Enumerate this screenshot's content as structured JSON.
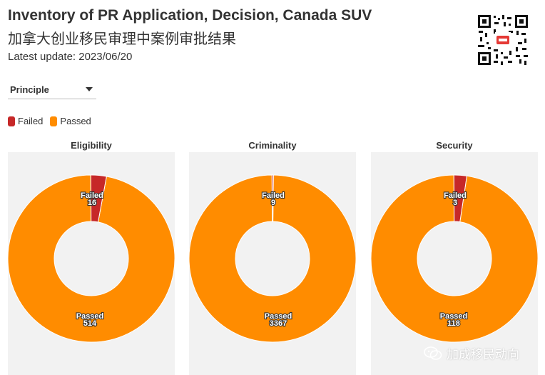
{
  "header": {
    "title": "Inventory of PR Application, Decision, Canada SUV",
    "subtitle_cn": "加拿大创业移民审理中案例审批结果",
    "latest_update": "Latest update: 2023/06/20"
  },
  "filter": {
    "selected": "Principle"
  },
  "colors": {
    "failed": "#c62828",
    "passed": "#ff8c00",
    "panel_bg": "#f2f2f2"
  },
  "legend": [
    {
      "label": "Failed",
      "color": "#c62828"
    },
    {
      "label": "Passed",
      "color": "#ff8c00"
    }
  ],
  "watermark": {
    "text": "加成移民动向",
    "icon": "wechat-icon"
  },
  "chart_data": [
    {
      "type": "pie",
      "title": "Eligibility",
      "categories": [
        "Failed",
        "Passed"
      ],
      "values": [
        16,
        514
      ]
    },
    {
      "type": "pie",
      "title": "Criminality",
      "categories": [
        "Failed",
        "Passed"
      ],
      "values": [
        9,
        3367
      ]
    },
    {
      "type": "pie",
      "title": "Security",
      "categories": [
        "Failed",
        "Passed"
      ],
      "values": [
        3,
        118
      ]
    }
  ]
}
